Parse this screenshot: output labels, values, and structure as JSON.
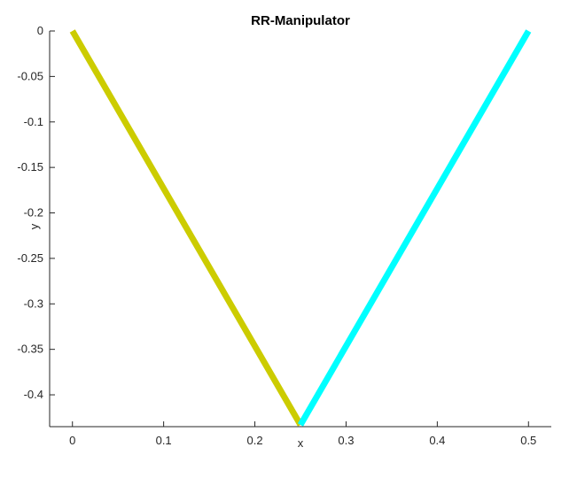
{
  "chart_data": {
    "type": "line",
    "title": "RR-Manipulator",
    "xlabel": "x",
    "ylabel": "y",
    "xlim": [
      -0.025,
      0.525
    ],
    "ylim": [
      -0.435,
      0
    ],
    "xticks": [
      0,
      0.1,
      0.2,
      0.3,
      0.4,
      0.5
    ],
    "xtick_labels": [
      "0",
      "0.1",
      "0.2",
      "0.3",
      "0.4",
      "0.5"
    ],
    "yticks": [
      0,
      -0.05,
      -0.1,
      -0.15,
      -0.2,
      -0.25,
      -0.3,
      -0.35,
      -0.4
    ],
    "ytick_labels": [
      "0",
      "-0.05",
      "-0.1",
      "-0.15",
      "-0.2",
      "-0.25",
      "-0.3",
      "-0.35",
      "-0.4"
    ],
    "grid": false,
    "series": [
      {
        "x": [
          0,
          0.25
        ],
        "y": [
          0,
          -0.433
        ],
        "color": "#cccc00"
      },
      {
        "x": [
          0.25,
          0.5
        ],
        "y": [
          -0.433,
          0
        ],
        "color": "#00ffff"
      }
    ]
  }
}
